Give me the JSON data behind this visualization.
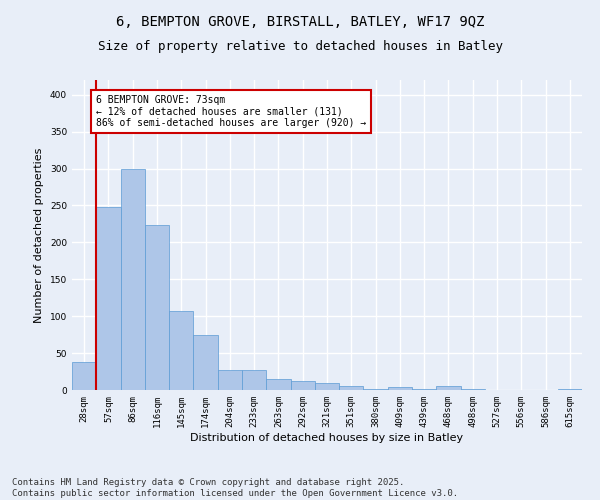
{
  "title_line1": "6, BEMPTON GROVE, BIRSTALL, BATLEY, WF17 9QZ",
  "title_line2": "Size of property relative to detached houses in Batley",
  "xlabel": "Distribution of detached houses by size in Batley",
  "ylabel": "Number of detached properties",
  "categories": [
    "28sqm",
    "57sqm",
    "86sqm",
    "116sqm",
    "145sqm",
    "174sqm",
    "204sqm",
    "233sqm",
    "263sqm",
    "292sqm",
    "321sqm",
    "351sqm",
    "380sqm",
    "409sqm",
    "439sqm",
    "468sqm",
    "498sqm",
    "527sqm",
    "556sqm",
    "586sqm",
    "615sqm"
  ],
  "values": [
    38,
    248,
    300,
    224,
    107,
    75,
    27,
    27,
    15,
    12,
    9,
    5,
    2,
    4,
    1,
    5,
    1,
    0,
    0,
    0,
    2
  ],
  "bar_color": "#aec6e8",
  "bar_edge_color": "#5b9bd5",
  "bar_width": 1.0,
  "vline_color": "#cc0000",
  "annotation_text": "6 BEMPTON GROVE: 73sqm\n← 12% of detached houses are smaller (131)\n86% of semi-detached houses are larger (920) →",
  "annotation_box_color": "#ffffff",
  "annotation_box_edge_color": "#cc0000",
  "ylim": [
    0,
    420
  ],
  "yticks": [
    0,
    50,
    100,
    150,
    200,
    250,
    300,
    350,
    400
  ],
  "footnote": "Contains HM Land Registry data © Crown copyright and database right 2025.\nContains public sector information licensed under the Open Government Licence v3.0.",
  "background_color": "#e8eef8",
  "grid_color": "#ffffff",
  "title_fontsize": 10,
  "subtitle_fontsize": 9,
  "tick_fontsize": 6.5,
  "label_fontsize": 8,
  "footnote_fontsize": 6.5,
  "annotation_fontsize": 7
}
